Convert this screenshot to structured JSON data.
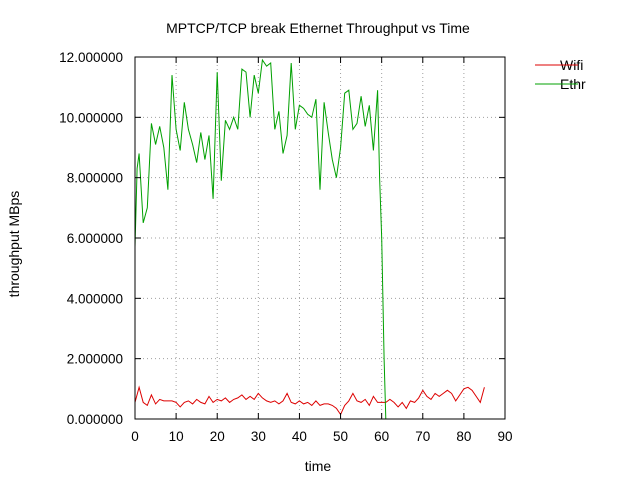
{
  "chart_data": {
    "type": "line",
    "title": "MPTCP/TCP break Ethernet Throughput vs Time",
    "xlabel": "time",
    "ylabel": "throughput MBps",
    "xlim": [
      0,
      90
    ],
    "ylim": [
      0,
      12
    ],
    "xticks": [
      0,
      10,
      20,
      30,
      40,
      50,
      60,
      70,
      80,
      90
    ],
    "xtick_labels": [
      "0",
      "10",
      "20",
      "30",
      "40",
      "50",
      "60",
      "70",
      "80",
      "90"
    ],
    "yticks": [
      0,
      2,
      4,
      6,
      8,
      10,
      12
    ],
    "ytick_labels": [
      "0.000000",
      "2.000000",
      "4.000000",
      "6.000000",
      "8.000000",
      "10.000000",
      "12.000000"
    ],
    "grid": true,
    "legend_position": "top-right outside",
    "series": [
      {
        "name": "Wifi",
        "color": "#dd0000",
        "x": [
          0,
          1,
          2,
          3,
          4,
          5,
          6,
          7,
          8,
          9,
          10,
          11,
          12,
          13,
          14,
          15,
          16,
          17,
          18,
          19,
          20,
          21,
          22,
          23,
          24,
          25,
          26,
          27,
          28,
          29,
          30,
          31,
          32,
          33,
          34,
          35,
          36,
          37,
          38,
          39,
          40,
          41,
          42,
          43,
          44,
          45,
          46,
          47,
          48,
          49,
          50,
          51,
          52,
          53,
          54,
          55,
          56,
          57,
          58,
          59,
          60,
          61,
          62,
          63,
          64,
          65,
          66,
          67,
          68,
          69,
          70,
          71,
          72,
          73,
          74,
          75,
          76,
          77,
          78,
          79,
          80,
          81,
          82,
          83,
          84,
          85
        ],
        "values": [
          0.55,
          1.05,
          0.55,
          0.45,
          0.8,
          0.5,
          0.65,
          0.6,
          0.6,
          0.6,
          0.55,
          0.4,
          0.55,
          0.6,
          0.5,
          0.65,
          0.55,
          0.5,
          0.75,
          0.55,
          0.65,
          0.6,
          0.7,
          0.55,
          0.65,
          0.7,
          0.8,
          0.65,
          0.75,
          0.65,
          0.85,
          0.7,
          0.6,
          0.55,
          0.6,
          0.5,
          0.6,
          0.85,
          0.55,
          0.5,
          0.6,
          0.5,
          0.55,
          0.45,
          0.6,
          0.45,
          0.5,
          0.5,
          0.45,
          0.35,
          0.15,
          0.45,
          0.6,
          0.85,
          0.6,
          0.55,
          0.65,
          0.45,
          0.75,
          0.55,
          0.55,
          0.55,
          0.65,
          0.55,
          0.4,
          0.55,
          0.35,
          0.6,
          0.55,
          0.7,
          0.95,
          0.75,
          0.65,
          0.85,
          0.75,
          0.85,
          0.95,
          0.85,
          0.6,
          0.8,
          1.0,
          1.05,
          0.95,
          0.75,
          0.55,
          1.05
        ]
      },
      {
        "name": "Ethr",
        "color": "#00a000",
        "x": [
          0,
          0.5,
          1,
          2,
          3,
          4,
          5,
          6,
          7,
          8,
          9,
          10,
          11,
          12,
          13,
          14,
          15,
          16,
          17,
          18,
          19,
          20,
          21,
          22,
          23,
          24,
          25,
          26,
          27,
          28,
          29,
          30,
          31,
          32,
          33,
          34,
          35,
          36,
          37,
          38,
          39,
          40,
          41,
          42,
          43,
          44,
          45,
          46,
          47,
          48,
          49,
          50,
          51,
          52,
          53,
          54,
          55,
          56,
          57,
          58,
          59,
          59.5,
          60,
          60.3,
          60.6,
          61
        ],
        "values": [
          5.7,
          8.3,
          8.8,
          6.5,
          7.0,
          9.8,
          9.1,
          9.7,
          9.0,
          7.6,
          11.4,
          9.6,
          8.9,
          10.5,
          9.6,
          9.1,
          8.5,
          9.5,
          8.6,
          9.4,
          7.3,
          11.5,
          7.9,
          9.9,
          9.6,
          10.0,
          9.6,
          11.6,
          11.5,
          10.0,
          11.4,
          10.8,
          11.9,
          11.7,
          11.8,
          9.6,
          10.2,
          8.8,
          9.4,
          11.8,
          9.6,
          10.4,
          10.3,
          10.1,
          10.0,
          10.6,
          7.6,
          10.5,
          9.5,
          8.6,
          8.0,
          9.0,
          10.8,
          10.9,
          9.6,
          9.8,
          10.7,
          9.7,
          10.4,
          8.9,
          10.9,
          8.0,
          6.0,
          4.0,
          2.0,
          0.0
        ]
      }
    ]
  }
}
